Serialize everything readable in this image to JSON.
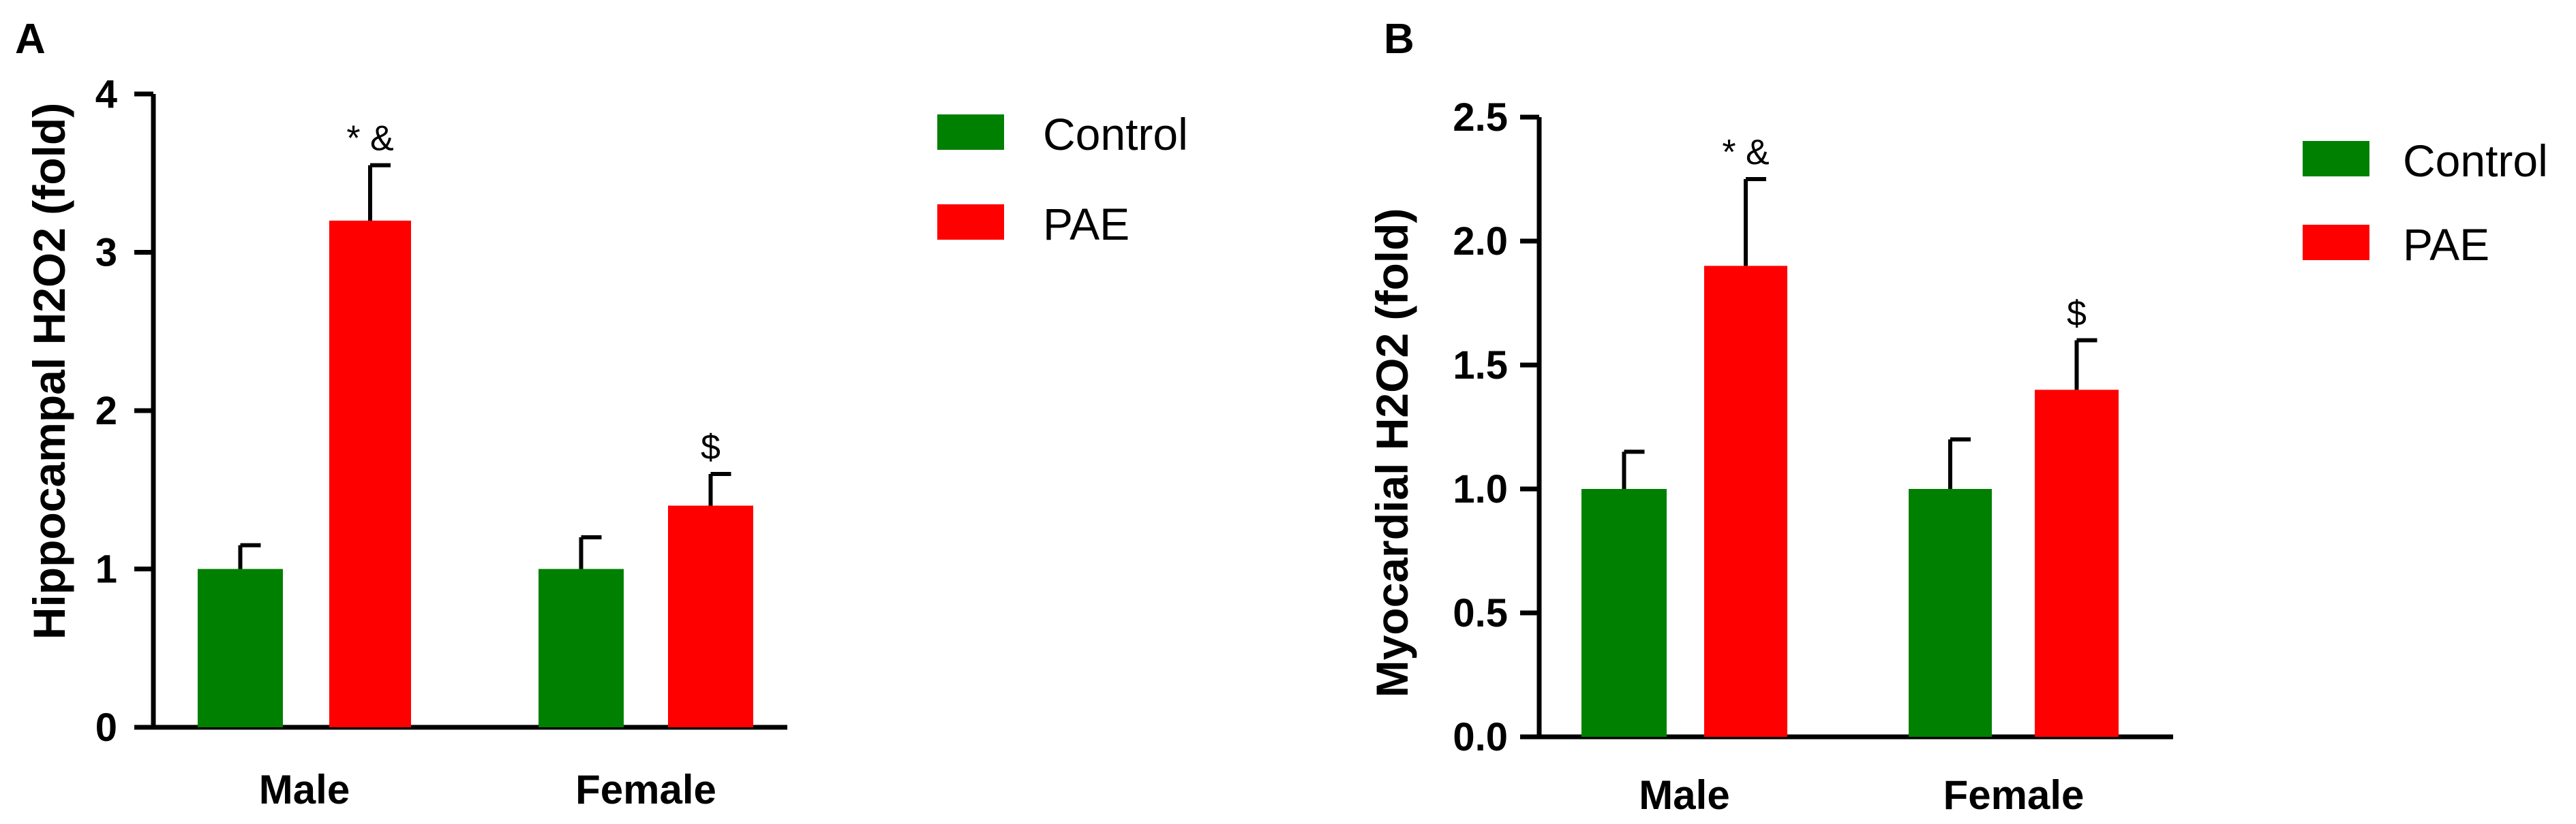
{
  "colors": {
    "control": "#008000",
    "pae": "#ff0000",
    "axis": "#000000"
  },
  "chart_data": [
    {
      "panel": "A",
      "type": "bar",
      "ylabel": "Hippocampal H2O2 (fold)",
      "categories": [
        "Male",
        "Female"
      ],
      "ylim": [
        0,
        4
      ],
      "yticks": [
        "0",
        "1",
        "2",
        "3",
        "4"
      ],
      "ytick_values": [
        0,
        1,
        2,
        3,
        4
      ],
      "series": [
        {
          "name": "Control",
          "values": [
            1.0,
            1.0
          ],
          "errors": [
            0.15,
            0.2
          ]
        },
        {
          "name": "PAE",
          "values": [
            3.2,
            1.4
          ],
          "errors": [
            0.35,
            0.2
          ]
        }
      ],
      "annotations": [
        {
          "category": "Male",
          "series": "PAE",
          "text": "* &"
        },
        {
          "category": "Female",
          "series": "PAE",
          "text": "$"
        }
      ],
      "legend": [
        "Control",
        "PAE"
      ]
    },
    {
      "panel": "B",
      "type": "bar",
      "ylabel": "Myocardial H2O2 (fold)",
      "categories": [
        "Male",
        "Female"
      ],
      "ylim": [
        0,
        2.5
      ],
      "yticks": [
        "0.0",
        "0.5",
        "1.0",
        "1.5",
        "2.0",
        "2.5"
      ],
      "ytick_values": [
        0,
        0.5,
        1.0,
        1.5,
        2.0,
        2.5
      ],
      "series": [
        {
          "name": "Control",
          "values": [
            1.0,
            1.0
          ],
          "errors": [
            0.15,
            0.2
          ]
        },
        {
          "name": "PAE",
          "values": [
            1.9,
            1.4
          ],
          "errors": [
            0.35,
            0.2
          ]
        }
      ],
      "annotations": [
        {
          "category": "Male",
          "series": "PAE",
          "text": "* &"
        },
        {
          "category": "Female",
          "series": "PAE",
          "text": "$"
        }
      ],
      "legend": [
        "Control",
        "PAE"
      ]
    }
  ]
}
